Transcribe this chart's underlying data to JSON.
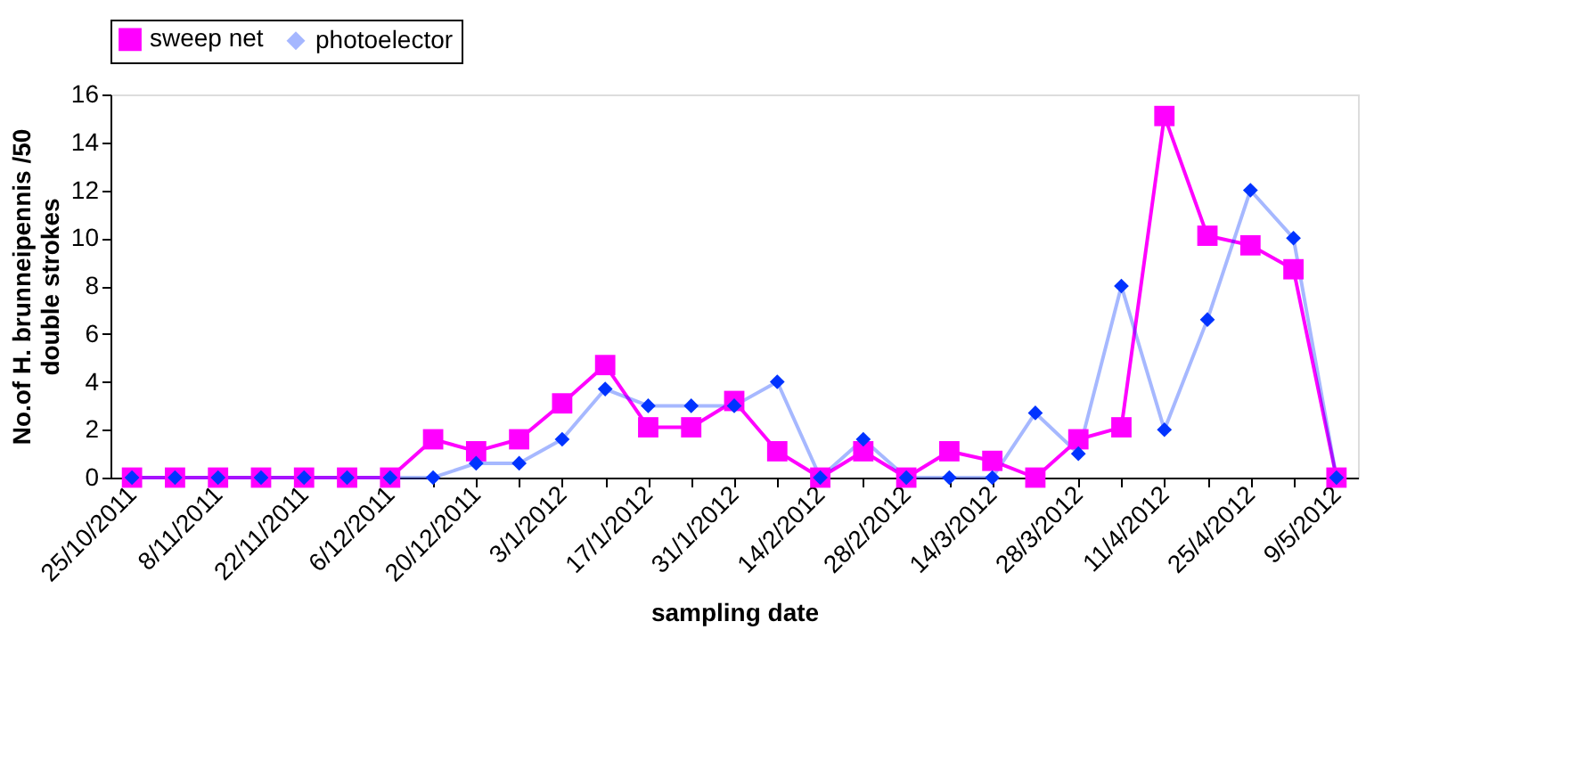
{
  "chart_data": {
    "type": "line",
    "xlabel": "sampling date",
    "ylabel": "No.of H. brunneipennis /50 double strokes",
    "categories": [
      "25/10/2011",
      null,
      "8/11/2011",
      null,
      "22/11/2011",
      null,
      "6/12/2011",
      null,
      "20/12/2011",
      null,
      "3/1/2012",
      null,
      "17/1/2012",
      null,
      "31/1/2012",
      null,
      "14/2/2012",
      null,
      "28/2/2012",
      null,
      "14/3/2012",
      null,
      "28/3/2012",
      null,
      "11/4/2012",
      null,
      "25/4/2012",
      null,
      "9/5/2012"
    ],
    "series": [
      {
        "name": "sweep net",
        "color": "#ff00ff",
        "marker": "square",
        "values": [
          0,
          0,
          0,
          0,
          0,
          0,
          0,
          1.6,
          1.1,
          1.6,
          3.1,
          4.7,
          2.1,
          2.1,
          3.2,
          1.1,
          0,
          1.1,
          0,
          1.1,
          0.7,
          0,
          1.6,
          2.1,
          15.1,
          10.1,
          9.7,
          8.7,
          0
        ]
      },
      {
        "name": "photoelector",
        "color": "#0033ff",
        "marker": "diamond",
        "values": [
          0,
          0,
          0,
          0,
          0,
          0,
          0,
          0,
          0.6,
          0.6,
          1.6,
          3.7,
          3.0,
          3.0,
          3.0,
          4.0,
          0,
          1.6,
          0,
          0,
          0,
          2.7,
          1.0,
          8.0,
          2.0,
          6.6,
          12.0,
          10.0,
          0
        ]
      }
    ],
    "ylim": [
      0,
      16
    ],
    "yticks": [
      0,
      2,
      4,
      6,
      8,
      10,
      12,
      14,
      16
    ],
    "grid": false,
    "legend": "top",
    "line_style": "solid"
  }
}
